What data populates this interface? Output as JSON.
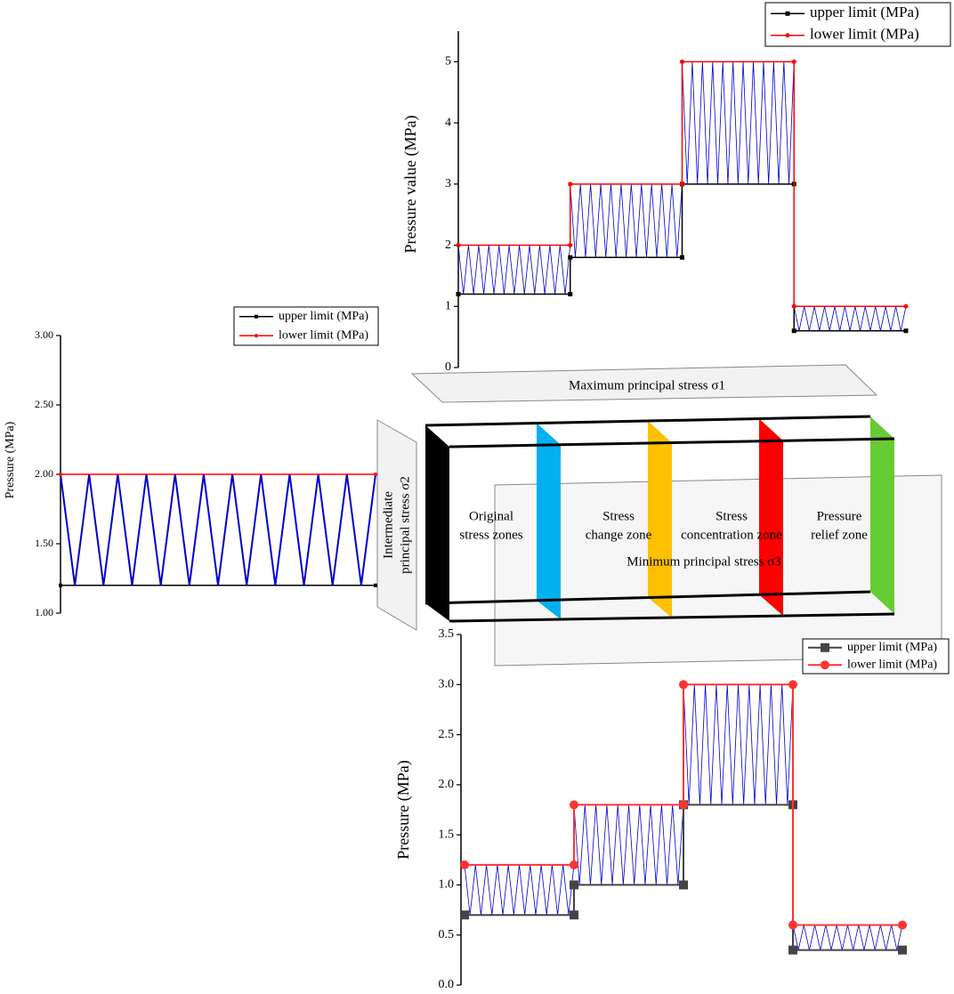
{
  "chart_data": [
    {
      "type": "line",
      "ylabel": "Pressure value (MPa)",
      "xlim": [
        0,
        4
      ],
      "ylim": [
        0,
        5.5
      ],
      "yticks": [
        0,
        1,
        2,
        3,
        4,
        5
      ],
      "legend": "upper right",
      "x": [
        0,
        1,
        1,
        2,
        2,
        3,
        3,
        4
      ],
      "series": [
        {
          "name": "upper limit (MPa)",
          "color": "#000000",
          "marker": "square",
          "values": [
            1.2,
            1.2,
            1.8,
            1.8,
            3,
            3,
            0.6,
            0.6
          ]
        },
        {
          "name": "lower limit (MPa)",
          "color": "#ff0000",
          "marker": "circle",
          "values": [
            2,
            2,
            3,
            3,
            5,
            5,
            1,
            1
          ]
        }
      ]
    },
    {
      "type": "line",
      "ylabel": "Pressure (MPa)",
      "xlim": [
        0,
        1
      ],
      "ylim": [
        1,
        3
      ],
      "yticks": [
        {
          "value": 1,
          "label": "1.00"
        },
        {
          "value": 1.5,
          "label": "1.50"
        },
        {
          "value": 2,
          "label": "2.00"
        },
        {
          "value": 2.5,
          "label": "2.50"
        },
        {
          "value": 3,
          "label": "3.00"
        }
      ],
      "legend": "upper right",
      "x": [
        0,
        1
      ],
      "series": [
        {
          "name": "upper limit (MPa)",
          "color": "#000000",
          "marker": "square",
          "values": [
            1.2,
            1.2
          ]
        },
        {
          "name": "lower limit (MPa)",
          "color": "#ff0000",
          "marker": "circle",
          "values": [
            2,
            2
          ]
        }
      ]
    },
    {
      "type": "line",
      "ylabel": "Pressure (MPa)",
      "xlim": [
        0,
        4
      ],
      "ylim": [
        0,
        3.5
      ],
      "yticks": [
        {
          "value": 0,
          "label": "0.0"
        },
        0.5,
        {
          "value": 1,
          "label": "1.0"
        },
        1.5,
        {
          "value": 2,
          "label": "2.0"
        },
        2.5,
        {
          "value": 3,
          "label": "3.0"
        },
        3.5
      ],
      "legend": "upper right",
      "x": [
        0,
        1,
        1,
        2,
        2,
        3,
        3,
        4
      ],
      "series": [
        {
          "name": "upper limit (MPa)",
          "color": "#444444",
          "marker": "square",
          "values": [
            0.7,
            0.7,
            1.0,
            1.0,
            1.8,
            1.8,
            0.35,
            0.35
          ]
        },
        {
          "name": "lower limit (MPa)",
          "color": "#ff3333",
          "marker": "circle",
          "values": [
            1.2,
            1.2,
            1.8,
            1.8,
            3.0,
            3.0,
            0.6,
            0.6
          ]
        }
      ]
    }
  ],
  "diagram": {
    "sigma1": "Maximum principal stress σ1",
    "sigma2": [
      "Intermediate",
      "principal stress σ2"
    ],
    "sigma3": "Minimum principal stress σ3",
    "zones": [
      [
        "Original",
        "stress zones"
      ],
      [
        "Stress",
        "change zone"
      ],
      [
        "Stress",
        "concentration zone"
      ],
      [
        "Pressure",
        "relief zone"
      ]
    ]
  }
}
